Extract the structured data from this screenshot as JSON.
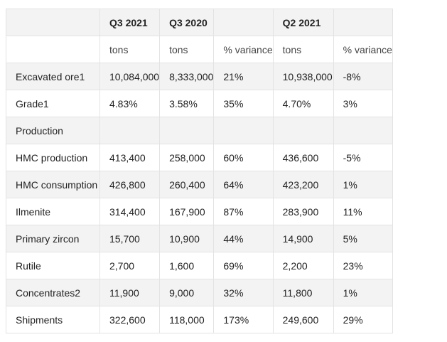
{
  "table": {
    "header": [
      "",
      "Q3 2021",
      "Q3 2020",
      "",
      "Q2 2021",
      ""
    ],
    "subheader": [
      "",
      "tons",
      "tons",
      "% variance",
      "tons",
      "% variance"
    ],
    "rows": [
      [
        "Excavated ore1",
        "10,084,000",
        "8,333,000",
        "21%",
        "10,938,000",
        "-8%"
      ],
      [
        "Grade1",
        "4.83%",
        "3.58%",
        "35%",
        "4.70%",
        "3%"
      ],
      [
        "Production",
        "",
        "",
        "",
        "",
        ""
      ],
      [
        "HMC production",
        "413,400",
        "258,000",
        "60%",
        "436,600",
        "-5%"
      ],
      [
        "HMC consumption",
        "426,800",
        "260,400",
        "64%",
        "423,200",
        "1%"
      ],
      [
        "Ilmenite",
        "314,400",
        "167,900",
        "87%",
        "283,900",
        "11%"
      ],
      [
        "Primary zircon",
        "15,700",
        "10,900",
        "44%",
        "14,900",
        "5%"
      ],
      [
        "Rutile",
        "2,700",
        "1,600",
        "69%",
        "2,200",
        "23%"
      ],
      [
        "Concentrates2",
        "11,900",
        "9,000",
        "32%",
        "11,800",
        "1%"
      ],
      [
        "Shipments",
        "322,600",
        "118,000",
        "173%",
        "249,600",
        "29%"
      ]
    ]
  }
}
